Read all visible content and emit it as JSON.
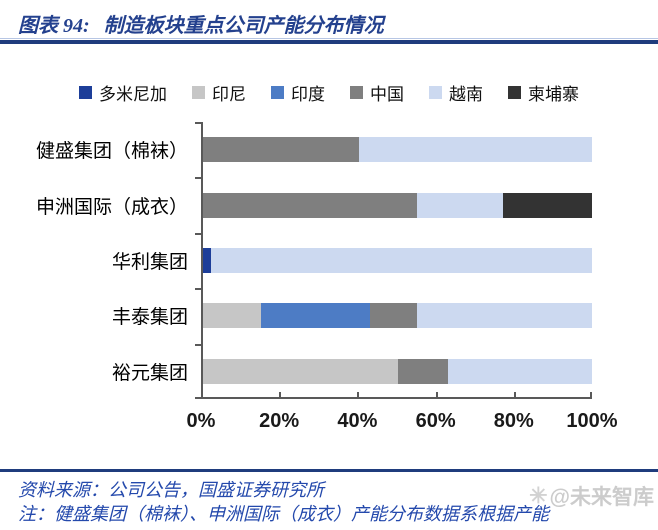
{
  "header": {
    "figure_label": "图表 94:",
    "title": "制造板块重点公司产能分布情况"
  },
  "chart_data": {
    "type": "bar",
    "orientation": "horizontal",
    "stacked": true,
    "title": "制造板块重点公司产能分布情况",
    "categories": [
      "健盛集团（棉袜）",
      "申洲国际（成衣）",
      "华利集团",
      "丰泰集团",
      "裕元集团"
    ],
    "series": [
      {
        "name": "多米尼加",
        "color": "#1D3E99",
        "values": [
          0,
          0,
          2,
          0,
          0
        ]
      },
      {
        "name": "印尼",
        "color": "#C6C6C6",
        "values": [
          0,
          0,
          0,
          15,
          50
        ]
      },
      {
        "name": "印度",
        "color": "#4D7CC5",
        "values": [
          0,
          0,
          0,
          28,
          0
        ]
      },
      {
        "name": "中国",
        "color": "#7F7F7F",
        "values": [
          40,
          55,
          0,
          12,
          13
        ]
      },
      {
        "name": "越南",
        "color": "#CCD9F0",
        "values": [
          60,
          22,
          98,
          45,
          37
        ]
      },
      {
        "name": "柬埔寨",
        "color": "#333333",
        "values": [
          0,
          23,
          0,
          0,
          0
        ]
      }
    ],
    "xlim": [
      0,
      100
    ],
    "x_tick_labels": [
      "0%",
      "20%",
      "40%",
      "60%",
      "80%",
      "100%"
    ],
    "legend_position": "top",
    "grid": false
  },
  "footer": {
    "source": "资料来源：公司公告，国盛证券研究所",
    "note": "注：健盛集团（棉袜）、申洲国际（成衣）产能分布数据系根据产能",
    "watermark_icon": "✳",
    "watermark": "@未来智库"
  },
  "colors": {
    "title": "#24418E",
    "divider": "#1F3C7D",
    "axis": "#595959",
    "note_text": "#2449AC",
    "watermark": "#C0C0C0"
  }
}
